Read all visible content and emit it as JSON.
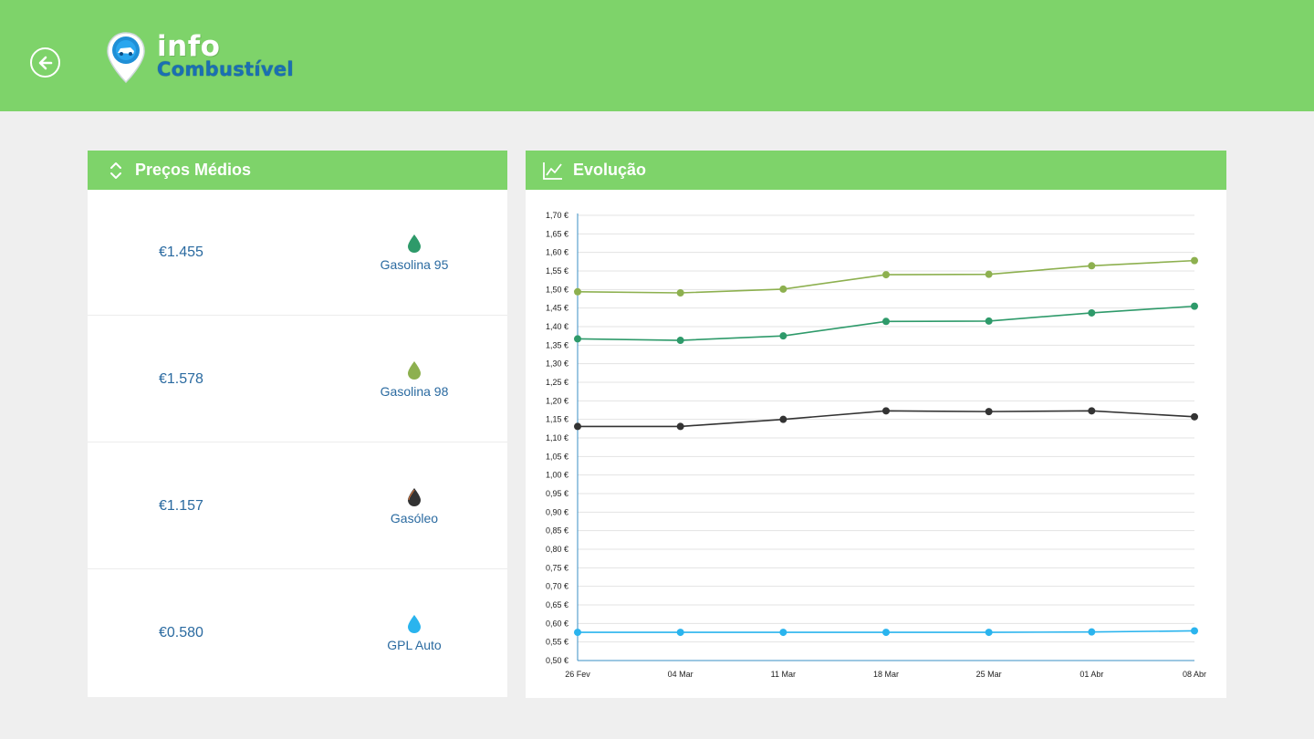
{
  "app": {
    "logo_line1": "info",
    "logo_line2": "Combustível"
  },
  "colors": {
    "header": "#7ed36a",
    "gasolina95": "#2e9a6a",
    "gasolina98": "#8db04f",
    "gasoleo": "#333333",
    "gpl": "#2ab4ee"
  },
  "prices_panel": {
    "title": "Preços Médios",
    "items": [
      {
        "price": "€1.455",
        "name": "Gasolina 95",
        "color": "#2e9a6a"
      },
      {
        "price": "€1.578",
        "name": "Gasolina 98",
        "color": "#8db04f"
      },
      {
        "price": "€1.157",
        "name": "Gasóleo",
        "color": "#333333"
      },
      {
        "price": "€0.580",
        "name": "GPL Auto",
        "color": "#2ab4ee"
      }
    ]
  },
  "chart_panel": {
    "title": "Evolução"
  },
  "chart_data": {
    "type": "line",
    "title": "Evolução",
    "categories": [
      "26 Fev",
      "04 Mar",
      "11 Mar",
      "18 Mar",
      "25 Mar",
      "01 Abr",
      "08 Abr"
    ],
    "ylim": [
      0.5,
      1.7
    ],
    "ytick_step": 0.05,
    "ytick_labels": [
      "1,70 €",
      "1,65 €",
      "1,60 €",
      "1,55 €",
      "1,50 €",
      "1,45 €",
      "1,40 €",
      "1,35 €",
      "1,30 €",
      "1,25 €",
      "1,20 €",
      "1,15 €",
      "1,10 €",
      "1,05 €",
      "1,00 €",
      "0,95 €",
      "0,90 €",
      "0,85 €",
      "0,80 €",
      "0,75 €",
      "0,70 €",
      "0,65 €",
      "0,60 €",
      "0,55 €",
      "0,50 €"
    ],
    "series": [
      {
        "name": "Gasolina 98",
        "color": "#8db04f",
        "values": [
          1.494,
          1.491,
          1.501,
          1.54,
          1.541,
          1.564,
          1.578
        ]
      },
      {
        "name": "Gasolina 95",
        "color": "#2e9a6a",
        "values": [
          1.367,
          1.363,
          1.375,
          1.414,
          1.415,
          1.437,
          1.455
        ]
      },
      {
        "name": "Gasóleo",
        "color": "#333333",
        "values": [
          1.131,
          1.131,
          1.15,
          1.173,
          1.171,
          1.173,
          1.157
        ]
      },
      {
        "name": "GPL Auto",
        "color": "#2ab4ee",
        "values": [
          0.576,
          0.576,
          0.576,
          0.576,
          0.576,
          0.577,
          0.58
        ]
      }
    ]
  }
}
